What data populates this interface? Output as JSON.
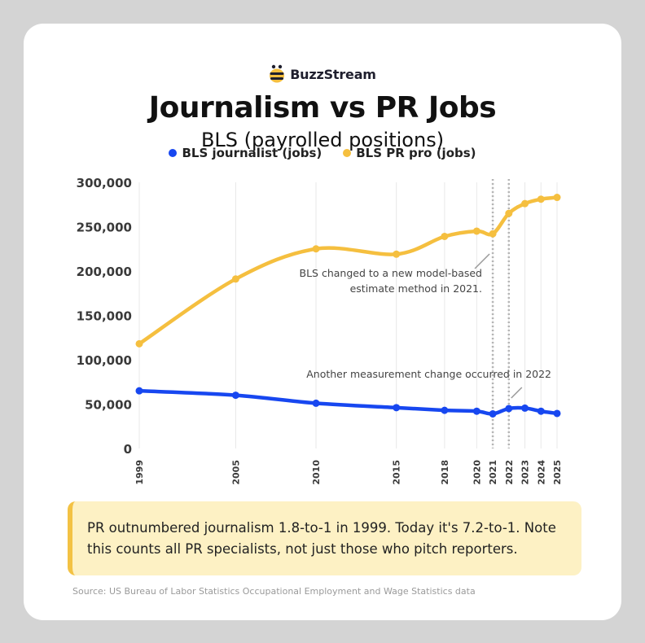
{
  "brand": {
    "name": "BuzzStream",
    "logo_icon": "bee-icon"
  },
  "header": {
    "title": "Journalism vs PR Jobs",
    "subtitle": "BLS (payrolled positions)"
  },
  "colors": {
    "journalist": "#1747f0",
    "pr": "#f5bf3f",
    "background": "#d4d4d4",
    "card": "#ffffff",
    "note_background": "#fdf1c4",
    "note_accent": "#f3c244"
  },
  "chart_data": {
    "type": "line",
    "x": [
      1999,
      2005,
      2010,
      2015,
      2018,
      2020,
      2021,
      2022,
      2023,
      2024,
      2025
    ],
    "xticks": [
      "1999",
      "2005",
      "2010",
      "2015",
      "2018",
      "2020",
      "2021",
      "2022",
      "2023",
      "2024",
      "2025"
    ],
    "series": [
      {
        "name": "BLS journalist (jobs)",
        "color": "#1747f0",
        "values": [
          65000,
          60000,
          51000,
          46000,
          43000,
          42000,
          39000,
          45000,
          45500,
          42000,
          39500
        ]
      },
      {
        "name": "BLS PR pro (jobs)",
        "color": "#f5bf3f",
        "values": [
          118000,
          191000,
          225000,
          219000,
          239000,
          245000,
          242000,
          265000,
          276000,
          281000,
          283000
        ]
      }
    ],
    "yticks": [
      "0",
      "50,000",
      "100,000",
      "150,000",
      "200,000",
      "250,000",
      "300,000"
    ],
    "ylim": [
      0,
      300000
    ],
    "grid": "vertical",
    "legend_position": "top-center",
    "reference_lines": [
      2021,
      2022
    ],
    "annotations": [
      {
        "id": "a2021",
        "x": 2021,
        "text_lines": [
          "BLS changed to a new model-based",
          "estimate method in 2021."
        ]
      },
      {
        "id": "a2022",
        "x": 2022,
        "text_lines": [
          "Another measurement change occurred in 2022"
        ]
      }
    ]
  },
  "note": {
    "text": "PR outnumbered journalism 1.8-to-1 in 1999. Today it's 7.2-to-1. Note this counts all PR specialists, not just those who pitch reporters."
  },
  "source": {
    "text": "Source: US Bureau of Labor Statistics Occupational Employment and Wage Statistics data"
  }
}
